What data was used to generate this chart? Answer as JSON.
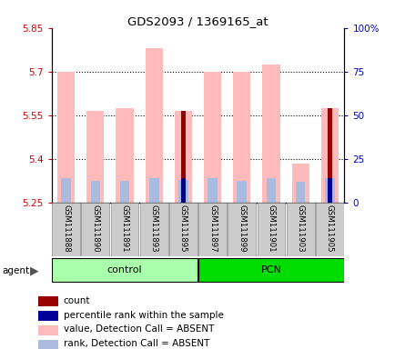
{
  "title": "GDS2093 / 1369165_at",
  "samples": [
    "GSM111888",
    "GSM111890",
    "GSM111891",
    "GSM111893",
    "GSM111895",
    "GSM111897",
    "GSM111899",
    "GSM111901",
    "GSM111903",
    "GSM111905"
  ],
  "ylim_left": [
    5.25,
    5.85
  ],
  "ylim_right": [
    0,
    100
  ],
  "yticks_left": [
    5.25,
    5.4,
    5.55,
    5.7,
    5.85
  ],
  "ytick_labels_right": [
    "0",
    "25",
    "50",
    "75",
    "100%"
  ],
  "bar_bottom": 5.25,
  "value_absent_top": [
    5.7,
    5.565,
    5.575,
    5.78,
    5.565,
    5.7,
    5.7,
    5.725,
    5.385,
    5.575
  ],
  "rank_absent_top": [
    5.335,
    5.325,
    5.325,
    5.335,
    5.328,
    5.335,
    5.325,
    5.335,
    5.322,
    5.335
  ],
  "count_top": [
    5.25,
    5.25,
    5.25,
    5.25,
    5.565,
    5.25,
    5.25,
    5.25,
    5.25,
    5.575
  ],
  "percentile_top": [
    5.25,
    5.25,
    5.25,
    5.25,
    5.332,
    5.25,
    5.25,
    5.25,
    5.25,
    5.335
  ],
  "color_value_absent": "#FFBBBB",
  "color_rank_absent": "#AABBDD",
  "color_count": "#990000",
  "color_percentile": "#000099",
  "control_color_light": "#AAFFAA",
  "control_color_dark": "#00DD00",
  "axis_color_left": "#CC0000",
  "axis_color_right": "#0000CC",
  "group_label_control": "control",
  "group_label_pcn": "PCN",
  "legend_items": [
    {
      "color": "#990000",
      "label": "count"
    },
    {
      "color": "#000099",
      "label": "percentile rank within the sample"
    },
    {
      "color": "#FFBBBB",
      "label": "value, Detection Call = ABSENT"
    },
    {
      "color": "#AABBDD",
      "label": "rank, Detection Call = ABSENT"
    }
  ]
}
